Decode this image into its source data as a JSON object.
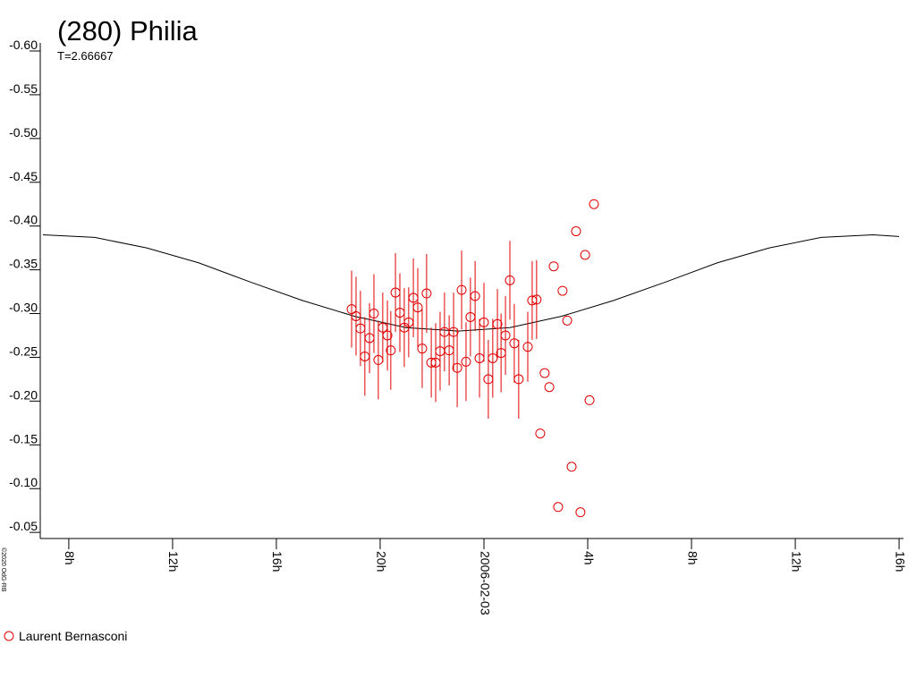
{
  "chart_data": {
    "type": "scatter",
    "title": "(280) Philia",
    "subtitle": "T=2.66667",
    "credit": "©2020 OdG-RB",
    "legend": "bottom-left",
    "xlim": [
      -17.1,
      16.17
    ],
    "ylim": [
      -0.043,
      -0.6
    ],
    "xticks": [
      {
        "value": -16,
        "label": "8h"
      },
      {
        "value": -12,
        "label": "12h"
      },
      {
        "value": -8,
        "label": "16h"
      },
      {
        "value": -4,
        "label": "20h"
      },
      {
        "value": 0,
        "label": "2006-02-03"
      },
      {
        "value": 4,
        "label": "4h"
      },
      {
        "value": 8,
        "label": "8h"
      },
      {
        "value": 12,
        "label": "12h"
      },
      {
        "value": 16,
        "label": "16h"
      }
    ],
    "yticks": [
      {
        "value": -0.6,
        "label": "-0.60"
      },
      -0.55,
      {
        "value": -0.5,
        "label": "-0.50"
      },
      -0.45,
      {
        "value": -0.4,
        "label": "-0.40"
      },
      -0.35,
      {
        "value": -0.3,
        "label": "-0.30"
      },
      -0.25,
      {
        "value": -0.2,
        "label": "-0.20"
      },
      -0.15,
      {
        "value": -0.1,
        "label": "-0.10"
      },
      -0.05
    ],
    "model": {
      "color": "#000000",
      "x": [
        -17,
        -15,
        -13,
        -11,
        -9,
        -7,
        -5,
        -3,
        -1,
        1,
        3,
        5,
        7,
        9,
        11,
        13,
        15,
        16
      ],
      "values": [
        -0.39,
        -0.387,
        -0.375,
        -0.358,
        -0.336,
        -0.315,
        -0.297,
        -0.284,
        -0.28,
        -0.284,
        -0.297,
        -0.315,
        -0.336,
        -0.358,
        -0.375,
        -0.387,
        -0.39,
        -0.388
      ]
    },
    "series": [
      {
        "name": "Laurent Bernasconi",
        "color": "#e00000",
        "x": [
          -5.1,
          -4.93,
          -4.76,
          -4.59,
          -4.41,
          -4.24,
          -4.07,
          -3.9,
          -3.72,
          -3.59,
          -3.41,
          -3.24,
          -3.07,
          -2.9,
          -2.72,
          -2.55,
          -2.38,
          -2.21,
          -2.03,
          -1.86,
          -1.69,
          -1.52,
          -1.34,
          -1.17,
          -1.03,
          -0.86,
          -0.69,
          -0.52,
          -0.34,
          -0.17,
          0.0,
          0.17,
          0.34,
          0.52,
          0.66,
          0.83,
          1.0,
          1.17,
          1.34,
          1.69,
          1.86,
          2.03,
          2.17,
          2.34,
          2.52,
          2.69,
          2.86,
          3.03,
          3.21,
          3.38,
          3.55,
          3.72,
          3.9,
          4.07,
          4.24
        ],
        "values": [
          -0.305,
          -0.297,
          -0.283,
          -0.251,
          -0.272,
          -0.3,
          -0.247,
          -0.284,
          -0.275,
          -0.258,
          -0.324,
          -0.301,
          -0.284,
          -0.29,
          -0.318,
          -0.307,
          -0.26,
          -0.323,
          -0.244,
          -0.244,
          -0.257,
          -0.279,
          -0.258,
          -0.279,
          -0.238,
          -0.327,
          -0.245,
          -0.296,
          -0.32,
          -0.249,
          -0.29,
          -0.225,
          -0.249,
          -0.288,
          -0.255,
          -0.275,
          -0.338,
          -0.266,
          -0.225,
          -0.262,
          -0.315,
          -0.316,
          -0.163,
          -0.232,
          -0.216,
          -0.354,
          -0.079,
          -0.326,
          -0.292,
          -0.125,
          -0.394,
          -0.073,
          -0.367,
          -0.201,
          -0.425
        ],
        "errors": [
          0.044,
          0.045,
          0.043,
          0.045,
          0.04,
          0.045,
          0.045,
          0.04,
          0.04,
          0.045,
          0.045,
          0.045,
          0.045,
          0.04,
          0.045,
          0.045,
          0.045,
          0.045,
          0.04,
          0.045,
          0.045,
          0.045,
          0.04,
          0.045,
          0.045,
          0.045,
          0.045,
          0.045,
          0.04,
          0.045,
          0.045,
          0.045,
          0.045,
          0.04,
          0.045,
          0.045,
          0.045,
          0.045,
          0.045,
          0.04,
          0.045,
          0.045,
          null,
          null,
          null,
          null,
          null,
          null,
          null,
          null,
          null,
          null,
          null,
          null,
          null
        ]
      }
    ]
  }
}
